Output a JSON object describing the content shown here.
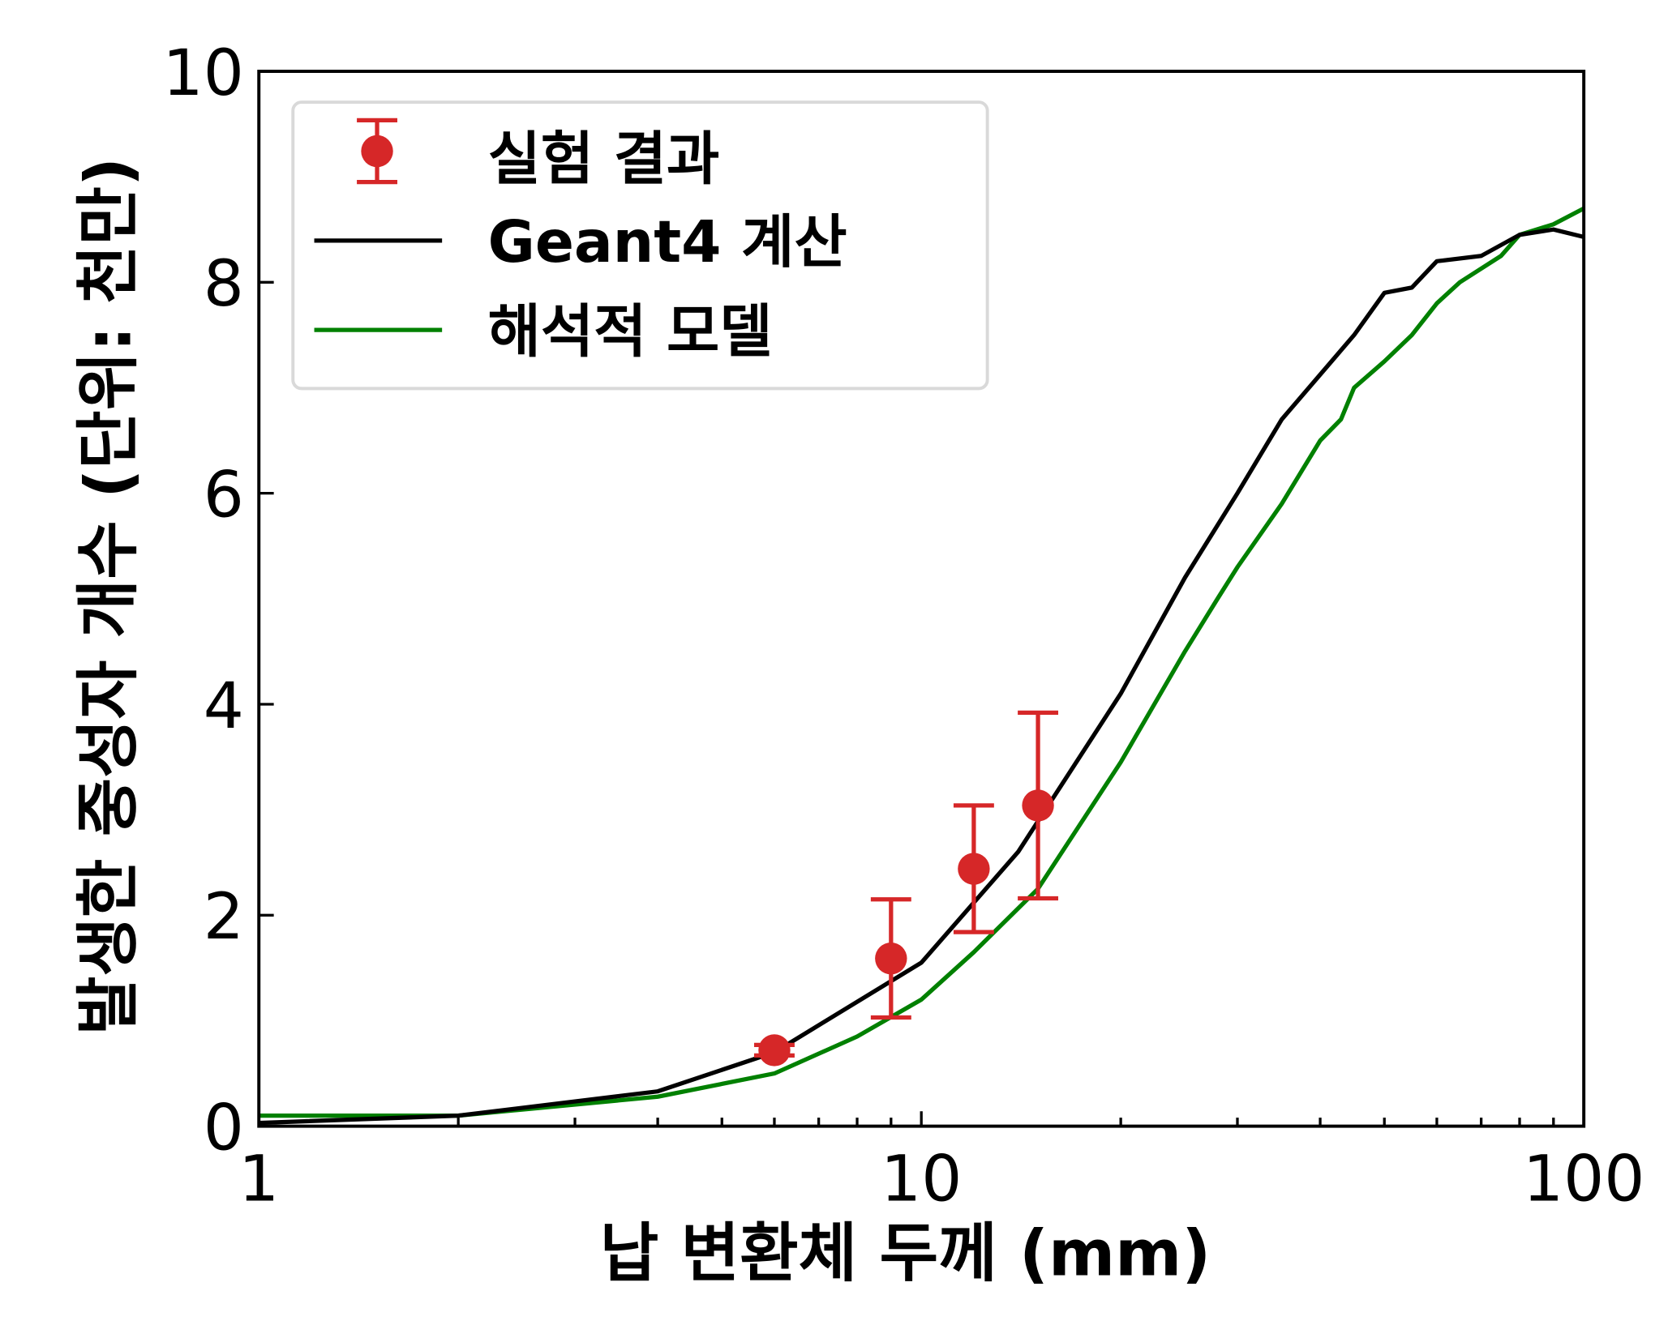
{
  "chart_data": {
    "type": "line",
    "xlabel": "납 변환체 두께 (mm)",
    "ylabel": "발생한 중성자 개수 (단위: 천만)",
    "xscale": "log",
    "xlim": [
      1,
      100
    ],
    "ylim": [
      0,
      10
    ],
    "xticks": [
      "1",
      "10",
      "100"
    ],
    "yticks": [
      "0",
      "2",
      "4",
      "6",
      "8",
      "10"
    ],
    "grid": false,
    "legend_position": "top-left",
    "series": [
      {
        "name": "실험 결과",
        "kind": "errorbar",
        "color": "#d62728",
        "x": [
          6,
          9,
          12,
          15
        ],
        "y": [
          0.72,
          1.59,
          2.44,
          3.04
        ],
        "yerr": [
          0.05,
          0.56,
          0.6,
          0.88
        ]
      },
      {
        "name": "Geant4 계산",
        "kind": "line",
        "color": "#000000",
        "x": [
          1,
          2,
          4,
          6,
          10,
          14,
          20,
          25,
          30,
          35,
          45,
          50,
          55,
          60,
          70,
          80,
          90,
          100
        ],
        "y": [
          0.03,
          0.1,
          0.33,
          0.7,
          1.55,
          2.6,
          4.1,
          5.2,
          6.0,
          6.7,
          7.5,
          7.9,
          7.95,
          8.2,
          8.25,
          8.45,
          8.5,
          8.43
        ]
      },
      {
        "name": "해석적 모델",
        "kind": "line",
        "color": "#008000",
        "x": [
          1,
          2,
          4,
          6,
          8,
          10,
          12,
          15,
          20,
          25,
          28,
          30,
          35,
          40,
          43,
          45,
          50,
          55,
          60,
          65,
          75,
          80,
          90,
          100
        ],
        "y": [
          0.1,
          0.1,
          0.28,
          0.5,
          0.85,
          1.2,
          1.65,
          2.25,
          3.45,
          4.5,
          5.0,
          5.3,
          5.9,
          6.5,
          6.7,
          7.0,
          7.25,
          7.5,
          7.8,
          8.0,
          8.25,
          8.45,
          8.55,
          8.7
        ]
      }
    ]
  }
}
